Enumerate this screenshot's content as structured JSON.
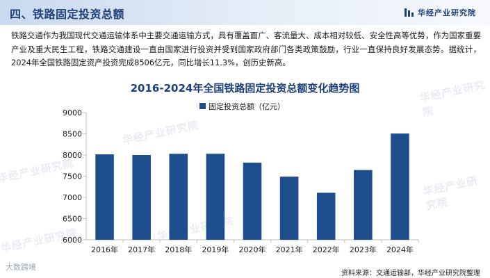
{
  "header": {
    "section_title": "四、铁路固定投资总额",
    "brand_name": "华经产业研究院"
  },
  "paragraph": "铁路交通作为我国现代交通运输体系中主要交通运输方式，具有覆盖面广、客流量大、成本相对较低、安全性高等优势，作为国家重要产业及重大民生工程，铁路交通建设一直由国家进行投资并受到国家政府部门各类政策鼓励，行业一直保持良好发展态势。据统计，2024年全国铁路固定资产投资完成8506亿元，同比增长11.3%，创历史新高。",
  "watermark_text": "华经产业研究院",
  "footer": {
    "logo_text": "大数跨境",
    "source": "资料来源：交通运输部，华经产业研究院整理"
  },
  "colors": {
    "bar": "#1f4e8c",
    "title": "#1f3f7a",
    "axis": "#bfbfbf"
  },
  "chart_data": {
    "type": "bar",
    "title": "2016-2024年全国铁路固定投资总额变化趋势图",
    "categories": [
      "2016年",
      "2017年",
      "2018年",
      "2019年",
      "2020年",
      "2021年",
      "2022年",
      "2023年",
      "2024年"
    ],
    "series": [
      {
        "name": "固定投资总额（亿元）",
        "values": [
          8015,
          8001,
          8028,
          8029,
          7819,
          7489,
          7109,
          7645,
          8506
        ]
      }
    ],
    "ylim": [
      6000,
      9000
    ],
    "yticks": [
      6000,
      6500,
      7000,
      7500,
      8000,
      8500,
      9000
    ],
    "grid": false,
    "legend_position": "top"
  }
}
